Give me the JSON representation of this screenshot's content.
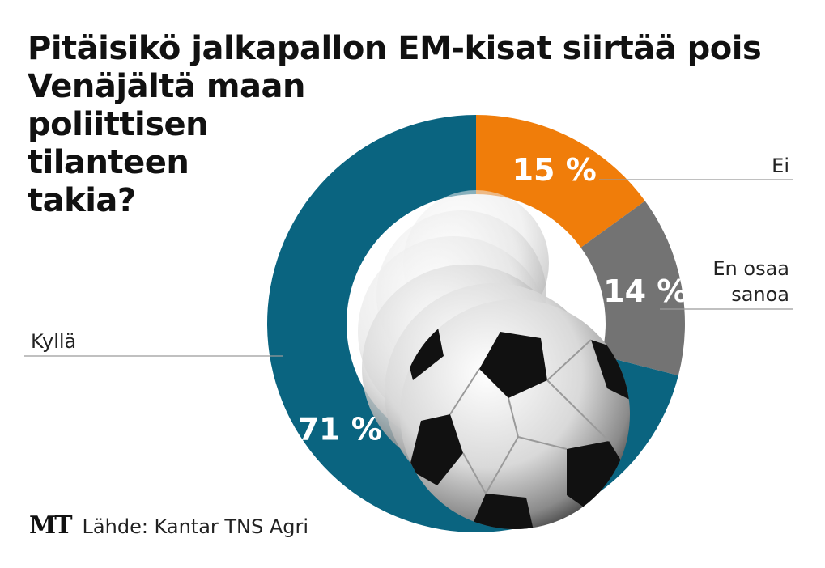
{
  "title_lines": [
    "Pitäisikö jalkapallon EM-kisat siirtää pois",
    "Venäjältä maan",
    "poliittisen",
    "tilanteen",
    "takia?"
  ],
  "chart_data": {
    "type": "pie",
    "variant": "donut",
    "title": "Pitäisikö jalkapallon EM-kisat siirtää pois Venäjältä maan poliittisen tilanteen takia?",
    "start": "top",
    "direction": "clockwise",
    "slices": [
      {
        "label": "Ei",
        "value": 15,
        "display": "15 %",
        "color": "#f07d0a"
      },
      {
        "label": "En osaa sanoa",
        "label_lines": [
          "En osaa",
          "sanoa"
        ],
        "value": 14,
        "display": "14 %",
        "color": "#737373"
      },
      {
        "label": "Kyllä",
        "value": 71,
        "display": "71 %",
        "color": "#0a6480"
      }
    ],
    "unit": "%",
    "center_image": "soccer-balls"
  },
  "colors": {
    "background": "#ffffff",
    "text": "#111111",
    "leader_line": "#9a9a9a"
  },
  "footer": {
    "logo": "MT",
    "source": "Lähde: Kantar TNS Agri"
  }
}
